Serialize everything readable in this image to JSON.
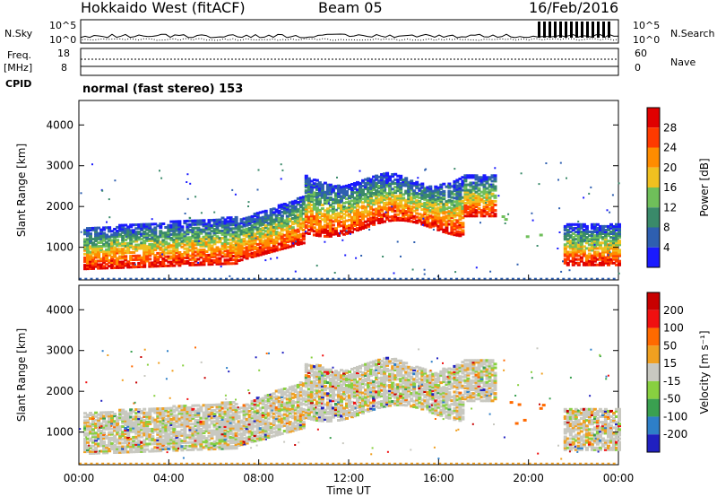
{
  "header": {
    "station": "Hokkaido West (fitACF)",
    "beam": "Beam 05",
    "date": "16/Feb/2016"
  },
  "status_panels": {
    "nsky_label": "N.Sky",
    "nsearch_label": "N.Search",
    "freq_label_1": "Freq.",
    "freq_label_2": "[MHz]",
    "nave_label": "Nave",
    "cpid_label": "CPID",
    "cpid_value": "normal (fast stereo) 153",
    "noise_ticks": [
      "10^5",
      "10^0"
    ],
    "freq_ticks": [
      "18",
      "8"
    ],
    "nave_ticks": [
      "60",
      "0"
    ]
  },
  "chart_data": [
    {
      "type": "heatmap",
      "panel": "power",
      "ylabel": "Slant Range [km]",
      "ylim": [
        200,
        4600
      ],
      "yticks": [
        "1000",
        "2000",
        "3000",
        "4000"
      ],
      "colorbar": {
        "label": "Power [dB]",
        "ticks": [
          "4",
          "8",
          "12",
          "16",
          "20",
          "24",
          "28"
        ],
        "colors": [
          "#1a1aff",
          "#2e5fb0",
          "#3a8a6a",
          "#6fbf5a",
          "#f0c020",
          "#ff8c00",
          "#ff3a00",
          "#e00000"
        ]
      }
    },
    {
      "type": "heatmap",
      "panel": "velocity",
      "ylabel": "Slant Range [km]",
      "ylim": [
        200,
        4600
      ],
      "yticks": [
        "1000",
        "2000",
        "3000",
        "4000"
      ],
      "colorbar": {
        "label": "Velocity [m s⁻¹]",
        "ticks": [
          "200",
          "100",
          "50",
          "15",
          "-15",
          "-50",
          "-100",
          "-200"
        ],
        "colors": [
          "#2020c0",
          "#2e7fc8",
          "#3aa050",
          "#88d040",
          "#c8c8c0",
          "#f0a020",
          "#ff6a00",
          "#f01010",
          "#c80000"
        ]
      }
    }
  ],
  "x_axis": {
    "label": "Time UT",
    "ticks": [
      "00:00",
      "04:00",
      "08:00",
      "12:00",
      "16:00",
      "20:00",
      "00:00"
    ]
  }
}
